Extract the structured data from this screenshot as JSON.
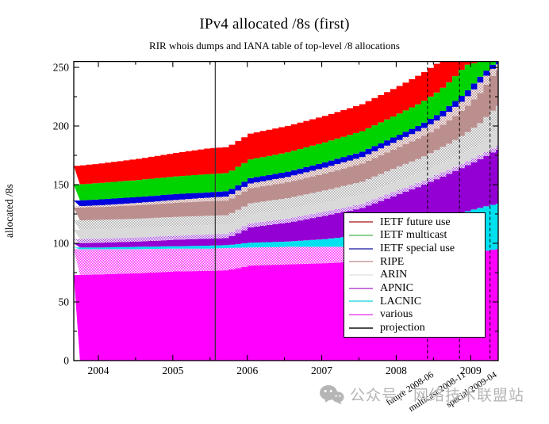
{
  "title": "IPv4 allocated /8s (first)",
  "subtitle": "RIR whois dumps and IANA table of top-level /8 allocations",
  "watermark": {
    "icon": "wechat-icon",
    "text": "公众号：网络技术联盟站",
    "color": "#b5b5b5"
  },
  "legend": {
    "items": [
      {
        "label": "IETF future use",
        "color": "#c46a6a"
      },
      {
        "label": "IETF multicast",
        "color": "#8ed08e"
      },
      {
        "label": "IETF special use",
        "color": "#6b6bc4"
      },
      {
        "label": "RIPE",
        "color": "#d8b2b2"
      },
      {
        "label": "ARIN",
        "color": "#ebebeb"
      },
      {
        "label": "APNIC",
        "color": "#c875dd"
      },
      {
        "label": "LACNIC",
        "color": "#66e3ee"
      },
      {
        "label": "various",
        "color": "#f07bf0"
      },
      {
        "label": "projection",
        "color": "#4d4d4d"
      }
    ]
  },
  "chart_data": {
    "type": "area",
    "stacked": true,
    "step": "monthly",
    "title": "IPv4 allocated /8s (first)",
    "xlabel": "",
    "ylabel": "allocated /8s",
    "xlim": [
      2003.67,
      2009.37
    ],
    "ylim": [
      0,
      255
    ],
    "xticks": [
      2004,
      2005,
      2006,
      2007,
      2008,
      2009
    ],
    "xtick_minor_step": 0.5,
    "yticks": [
      0,
      50,
      100,
      150,
      200,
      250
    ],
    "ytick_minor_step": 25,
    "grid": false,
    "legend_position": "middle-right",
    "projection_line": {
      "x": 2005.57,
      "label": "projection"
    },
    "event_lines": [
      {
        "x": 2008.42,
        "label": "future 2008-06"
      },
      {
        "x": 2008.85,
        "label": "multicast 2008-11"
      },
      {
        "x": 2009.26,
        "label": "special 2009-04"
      }
    ],
    "x_samples": [
      2003.67,
      2004,
      2004.5,
      2005,
      2005.45,
      2005.7,
      2006,
      2006.5,
      2007,
      2007.5,
      2008,
      2008.3,
      2008.55,
      2008.7,
      2008.9,
      2009.1,
      2009.3,
      2009.5
    ],
    "series": [
      {
        "name": "various (allocated)",
        "style": "solid",
        "color": "#ff00ff",
        "cumulative": [
          73,
          73.5,
          74.5,
          76,
          76.5,
          77,
          81,
          82,
          83,
          84.5,
          87,
          89,
          91,
          92,
          92.5,
          93,
          95,
          95
        ]
      },
      {
        "name": "various (reserved)",
        "style": "hatched",
        "color": "#ff22ff",
        "cumulative": [
          95,
          95,
          95,
          95.5,
          95.5,
          96,
          96.5,
          97,
          97,
          97,
          95.5,
          93.5,
          91,
          92,
          92.5,
          93,
          95,
          95
        ]
      },
      {
        "name": "LACNIC",
        "style": "solid",
        "color": "#00e1f0",
        "cumulative": [
          96.5,
          96.5,
          97,
          97.5,
          98,
          98.5,
          100.5,
          101.5,
          103.5,
          107,
          112,
          116,
          120,
          123,
          127,
          130.5,
          133.5,
          135
        ]
      },
      {
        "name": "APNIC (allocated)",
        "style": "solid",
        "color": "#9400d3",
        "cumulative": [
          100,
          100.5,
          101.5,
          103,
          104,
          104.5,
          113.5,
          117.5,
          123.5,
          130,
          142,
          149,
          156,
          160,
          166,
          172,
          179,
          183
        ]
      },
      {
        "name": "APNIC (reserved)",
        "style": "hatched",
        "color": "#a64ce0",
        "cumulative": [
          103.5,
          104,
          105,
          106.5,
          107.5,
          108,
          117,
          121,
          127,
          133.5,
          145.5,
          152.5,
          159.5,
          163.5,
          169.5,
          175.5,
          182.5,
          186.5
        ]
      },
      {
        "name": "ARIN (allocated)",
        "style": "solid",
        "color": "#d9d9d9",
        "cumulative": [
          111.5,
          112,
          113,
          114.5,
          115.5,
          116,
          125,
          129,
          135,
          141.5,
          153.5,
          160.5,
          168,
          172,
          178,
          186,
          198,
          204
        ]
      },
      {
        "name": "ARIN (reserved)",
        "style": "hatched",
        "color": "#aaaaaa",
        "cumulative": [
          119.5,
          120,
          121,
          122.5,
          123.5,
          124,
          134,
          138.5,
          145,
          152.5,
          165.5,
          173,
          181,
          186,
          194,
          203,
          216,
          221.5
        ]
      },
      {
        "name": "RIPE (allocated)",
        "style": "solid",
        "color": "#bc8f8f",
        "cumulative": [
          130.5,
          131,
          132.5,
          134.5,
          136,
          136.5,
          147,
          152,
          159.5,
          168,
          182,
          190.5,
          199.5,
          206,
          216,
          229,
          247,
          250
        ]
      },
      {
        "name": "RIPE (reserved)",
        "style": "hatched",
        "color": "#bc8f8f",
        "cumulative": [
          131.5,
          132.5,
          134.5,
          137,
          139,
          140,
          151,
          156.5,
          164.5,
          173.5,
          188,
          197,
          206.5,
          213.5,
          224,
          238,
          252,
          255
        ]
      },
      {
        "name": "IETF special use",
        "style": "solid",
        "color": "#0000dd",
        "cumulative": [
          136.5,
          137.5,
          139.5,
          142,
          143.5,
          144.5,
          155.5,
          161,
          169,
          178,
          192.5,
          201.5,
          211,
          218.5,
          229,
          243,
          255,
          255
        ]
      },
      {
        "name": "IETF multicast",
        "style": "solid",
        "color": "#00d400",
        "cumulative": [
          150,
          151.5,
          154,
          157,
          159,
          160,
          171.5,
          177.5,
          186,
          195.5,
          210.5,
          220,
          230.5,
          239,
          252,
          255,
          255,
          255
        ]
      },
      {
        "name": "IETF future use",
        "style": "solid",
        "color": "#ff0000",
        "cumulative": [
          166,
          168,
          172,
          177,
          181,
          182,
          193.5,
          200,
          208.5,
          218.5,
          234,
          244.5,
          255,
          255,
          255,
          255,
          255,
          255
        ]
      }
    ]
  }
}
